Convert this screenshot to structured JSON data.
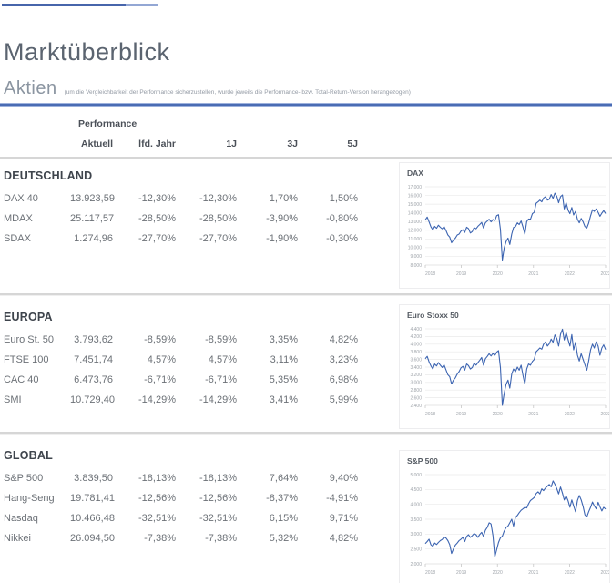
{
  "page": {
    "title": "Marktüberblick",
    "section": "Aktien",
    "note": "(um die Vergleichbarkeit der Performance sicherzustellen, wurde jeweils die Performance- bzw. Total-Return-Version herangezogen)"
  },
  "table": {
    "group_header": "Performance",
    "columns": [
      "Aktuell",
      "lfd. Jahr",
      "1J",
      "3J",
      "5J"
    ],
    "sections": [
      {
        "name": "DEUTSCHLAND",
        "rows": [
          {
            "label": "DAX 40",
            "values": [
              "13.923,59",
              "-12,30%",
              "-12,30%",
              "1,70%",
              "1,50%"
            ]
          },
          {
            "label": "MDAX",
            "values": [
              "25.117,57",
              "-28,50%",
              "-28,50%",
              "-3,90%",
              "-0,80%"
            ]
          },
          {
            "label": "SDAX",
            "values": [
              "1.274,96",
              "-27,70%",
              "-27,70%",
              "-1,90%",
              "-0,30%"
            ]
          }
        ]
      },
      {
        "name": "EUROPA",
        "rows": [
          {
            "label": "Euro St. 50",
            "values": [
              "3.793,62",
              "-8,59%",
              "-8,59%",
              "3,35%",
              "4,82%"
            ]
          },
          {
            "label": "FTSE 100",
            "values": [
              "7.451,74",
              "4,57%",
              "4,57%",
              "3,11%",
              "3,23%"
            ]
          },
          {
            "label": "CAC 40",
            "values": [
              "6.473,76",
              "-6,71%",
              "-6,71%",
              "5,35%",
              "6,98%"
            ]
          },
          {
            "label": "SMI",
            "values": [
              "10.729,40",
              "-14,29%",
              "-14,29%",
              "3,41%",
              "5,99%"
            ]
          }
        ]
      },
      {
        "name": "GLOBAL",
        "rows": [
          {
            "label": "S&P 500",
            "values": [
              "3.839,50",
              "-18,13%",
              "-18,13%",
              "7,64%",
              "9,40%"
            ]
          },
          {
            "label": "Hang-Seng",
            "values": [
              "19.781,41",
              "-12,56%",
              "-12,56%",
              "-8,37%",
              "-4,91%"
            ]
          },
          {
            "label": "Nasdaq",
            "values": [
              "10.466,48",
              "-32,51%",
              "-32,51%",
              "6,15%",
              "9,71%"
            ]
          },
          {
            "label": "Nikkei",
            "values": [
              "26.094,50",
              "-7,38%",
              "-7,38%",
              "5,32%",
              "4,82%"
            ]
          }
        ]
      }
    ]
  },
  "chart_data": [
    {
      "type": "line",
      "title": "DAX",
      "x_ticks": [
        "2018",
        "2019",
        "2020",
        "2021",
        "2022",
        "2023"
      ],
      "x_range": [
        2018,
        2023
      ],
      "ylim": [
        8000,
        17000
      ],
      "y_step": 1000,
      "y_tick_labels": [
        "17.000",
        "16.000",
        "15.000",
        "14.000",
        "13.000",
        "12.000",
        "11.000",
        "10.000",
        "9.000",
        "8.000"
      ],
      "grid": true,
      "values": [
        13180,
        13520,
        12980,
        12380,
        12050,
        12450,
        12230,
        12580,
        12340,
        12160,
        12420,
        11980,
        11450,
        11220,
        10560,
        10880,
        11100,
        11450,
        11560,
        11900,
        12060,
        11750,
        12350,
        12200,
        11680,
        11850,
        12300,
        12160,
        12460,
        12660,
        12900,
        12260,
        12860,
        13060,
        13260,
        12960,
        13230,
        13100,
        13680,
        13790,
        12100,
        8560,
        9960,
        10700,
        11100,
        10360,
        11560,
        12310,
        12420,
        12860,
        12660,
        13060,
        12360,
        11560,
        13000,
        13300,
        13260,
        13900,
        14060,
        15100,
        15260,
        15460,
        15260,
        15700,
        15860,
        15460,
        15560,
        16100,
        15660,
        16260,
        15900,
        15160,
        15860,
        16060,
        14460,
        15160,
        14310,
        13910,
        14610,
        13760,
        14160,
        13260,
        12860,
        13360,
        12960,
        12430,
        12260,
        12810,
        13660,
        14360,
        14160,
        14460,
        14060,
        13610,
        13960,
        14260,
        13920
      ]
    },
    {
      "type": "line",
      "title": "Euro Stoxx 50",
      "x_ticks": [
        "2018",
        "2019",
        "2020",
        "2021",
        "2022",
        "2023"
      ],
      "x_range": [
        2018,
        2023
      ],
      "ylim": [
        2400,
        4400
      ],
      "y_step": 200,
      "y_tick_labels": [
        "4.400",
        "4.200",
        "4.000",
        "3.800",
        "3.600",
        "3.400",
        "3.200",
        "3.000",
        "2.800",
        "2.600",
        "2.400"
      ],
      "grid": true,
      "values": [
        3620,
        3680,
        3540,
        3430,
        3350,
        3480,
        3430,
        3520,
        3450,
        3390,
        3460,
        3330,
        3200,
        3150,
        2960,
        3060,
        3120,
        3220,
        3280,
        3380,
        3420,
        3320,
        3480,
        3440,
        3350,
        3390,
        3500,
        3450,
        3520,
        3580,
        3650,
        3450,
        3620,
        3680,
        3750,
        3690,
        3760,
        3700,
        3790,
        3830,
        3390,
        2400,
        2710,
        2950,
        3060,
        2850,
        3220,
        3350,
        3280,
        3400,
        3320,
        3450,
        3180,
        2960,
        3350,
        3480,
        3450,
        3550,
        3600,
        3800,
        3850,
        3900,
        3870,
        4000,
        4060,
        3950,
        4010,
        4130,
        4050,
        4240,
        4150,
        3950,
        4260,
        4390,
        4110,
        4300,
        4120,
        3950,
        4250,
        3850,
        4050,
        3710,
        3560,
        3750,
        3600,
        3460,
        3320,
        3560,
        3850,
        4000,
        3900,
        4060,
        3950,
        3710,
        3900,
        3980,
        3860
      ]
    },
    {
      "type": "line",
      "title": "S&P 500",
      "x_ticks": [
        "2018",
        "2019",
        "2020",
        "2021",
        "2022",
        "2023"
      ],
      "x_range": [
        2018,
        2023
      ],
      "ylim": [
        2000,
        5000
      ],
      "y_step": 500,
      "y_tick_labels": [
        "5.000",
        "4.500",
        "4.000",
        "3.500",
        "3.000",
        "2.500",
        "2.000"
      ],
      "grid": true,
      "values": [
        2680,
        2750,
        2830,
        2640,
        2590,
        2700,
        2650,
        2720,
        2780,
        2820,
        2900,
        2870,
        2780,
        2650,
        2350,
        2500,
        2630,
        2700,
        2780,
        2830,
        2890,
        2750,
        2920,
        2980,
        2890,
        2950,
        3020,
        2980,
        2890,
        2990,
        3060,
        2920,
        3130,
        3230,
        3380,
        3340,
        2950,
        2237,
        2480,
        2720,
        2880,
        2930,
        3100,
        3220,
        3270,
        3380,
        3500,
        3270,
        3560,
        3630,
        3720,
        3800,
        3850,
        3900,
        3880,
        4020,
        4130,
        4180,
        4230,
        4360,
        4420,
        4350,
        4520,
        4460,
        4550,
        4610,
        4670,
        4590,
        4790,
        4680,
        4530,
        4350,
        4580,
        4380,
        4150,
        4280,
        4120,
        3900,
        4150,
        3950,
        3750,
        4130,
        4300,
        4150,
        3930,
        3650,
        3580,
        3750,
        3900,
        4080,
        3950,
        3850,
        4070,
        3920,
        3780,
        3900,
        3840
      ]
    }
  ],
  "colors": {
    "accent_blue": "#4765ab",
    "accent_blue_light": "#93a7d4",
    "rule_blue": "#4a6cb4",
    "separator_gray": "#d6d6d6",
    "chart_line": "#3c64b1",
    "grid_line": "#eaeaea",
    "axis_text": "#a0a5ab"
  }
}
